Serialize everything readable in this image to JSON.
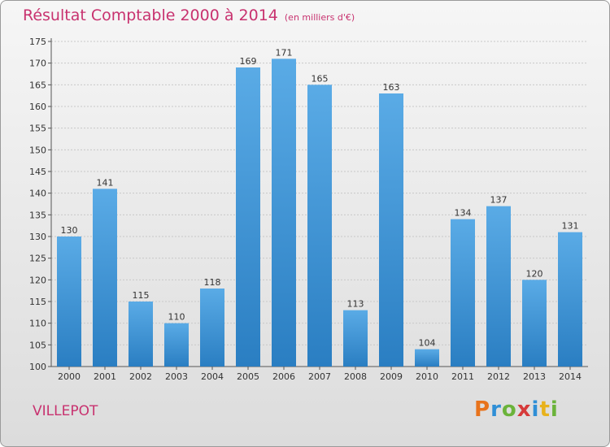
{
  "title": "Résultat Comptable 2000 à 2014",
  "subtitle": "(en milliers d'€)",
  "commune": "VILLEPOT",
  "logo_text": "Proxiti",
  "logo_colors": [
    "#e8731c",
    "#2f8fd6",
    "#6bb33a",
    "#d63a3a",
    "#2f8fd6",
    "#e8b21c",
    "#6bb33a"
  ],
  "colors": {
    "title": "#c8326f",
    "bar_top": "#5aabe6",
    "bar_bottom": "#2a7ec2"
  },
  "chart_data": {
    "type": "bar",
    "categories": [
      "2000",
      "2001",
      "2002",
      "2003",
      "2004",
      "2005",
      "2006",
      "2007",
      "2008",
      "2009",
      "2010",
      "2011",
      "2012",
      "2013",
      "2014"
    ],
    "values": [
      130,
      141,
      115,
      110,
      118,
      169,
      171,
      165,
      113,
      163,
      104,
      134,
      137,
      120,
      131
    ],
    "ylim": [
      100,
      175
    ],
    "yticks": [
      100,
      105,
      110,
      115,
      120,
      125,
      130,
      135,
      140,
      145,
      150,
      155,
      160,
      165,
      170,
      175
    ],
    "grid": true
  }
}
